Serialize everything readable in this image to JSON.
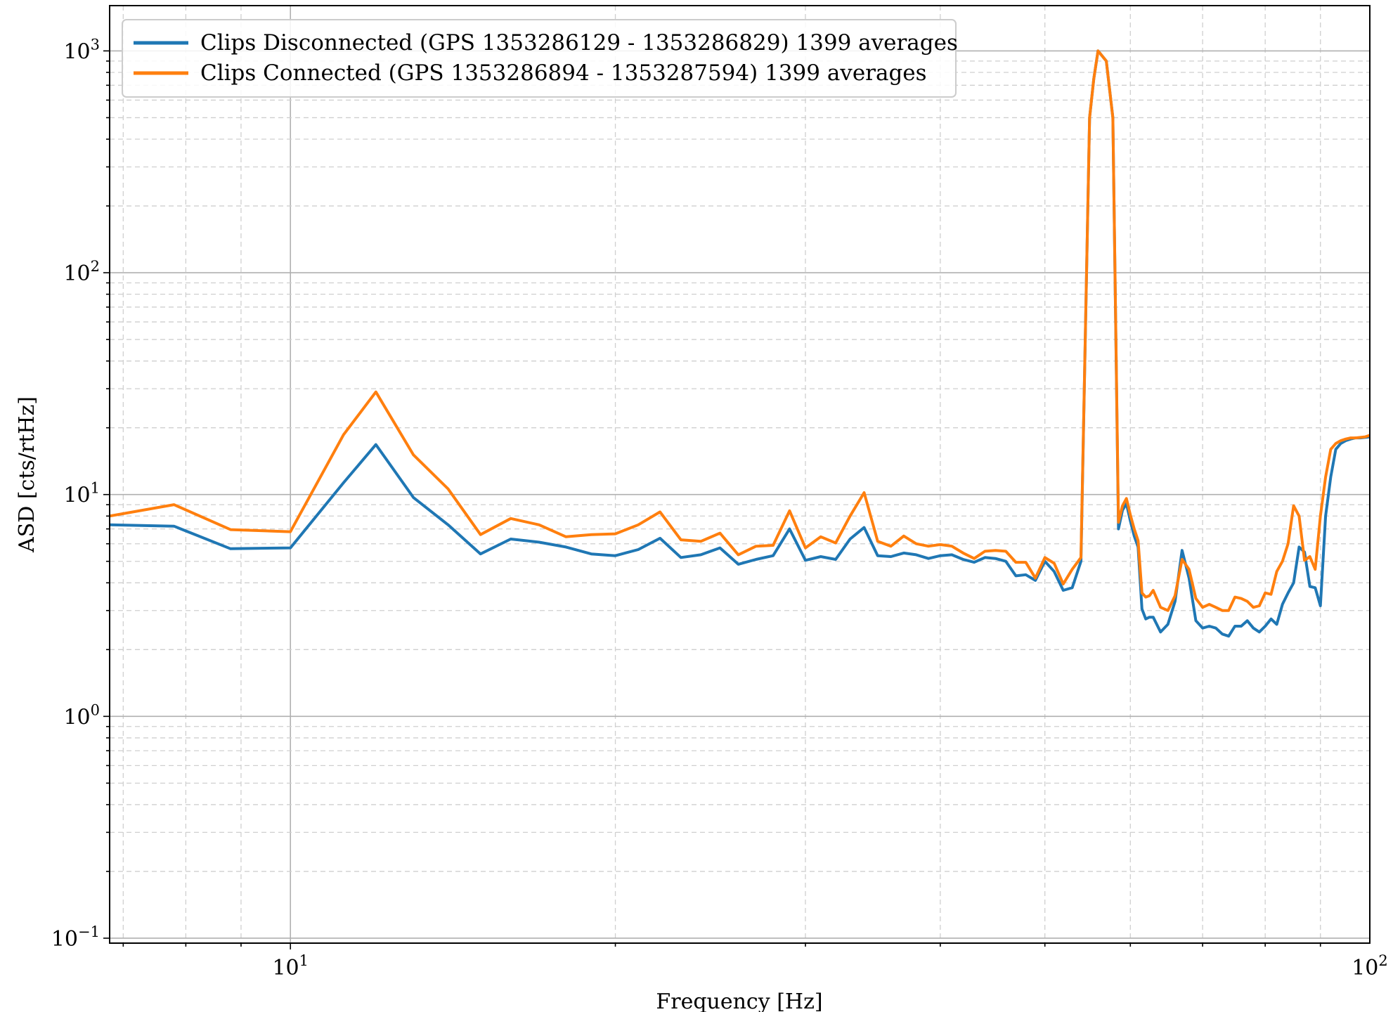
{
  "chart_data": {
    "type": "line",
    "title": "",
    "xlabel": "Frequency [Hz]",
    "ylabel": "ASD [cts/rtHz]",
    "x_scale": "log",
    "y_scale": "log",
    "xlim": [
      6.8,
      100
    ],
    "ylim": [
      0.095,
      1600
    ],
    "grid": true,
    "legend_position": "top-left",
    "x_major_ticks": [
      {
        "value": 10,
        "base": "10",
        "exp": "1"
      },
      {
        "value": 100,
        "base": "10",
        "exp": "2"
      }
    ],
    "y_major_ticks": [
      {
        "value": 0.1,
        "base": "10",
        "exp": "−1"
      },
      {
        "value": 1,
        "base": "10",
        "exp": "0"
      },
      {
        "value": 10,
        "base": "10",
        "exp": "1"
      },
      {
        "value": 100,
        "base": "10",
        "exp": "2"
      },
      {
        "value": 1000,
        "base": "10",
        "exp": "3"
      }
    ],
    "series": [
      {
        "name": "Clips Disconnected (GPS 1353286129 - 1353286829) 1399 averages",
        "color": "#1f77b4",
        "x": [
          6.8,
          7.8,
          8.8,
          10.0,
          11.2,
          12.0,
          13.0,
          14.0,
          15.0,
          16.0,
          17.0,
          18.0,
          19.0,
          20.0,
          21.0,
          22.0,
          23.0,
          24.0,
          25.0,
          26.0,
          27.0,
          28.0,
          29.0,
          30.0,
          31.0,
          32.0,
          33.0,
          34.0,
          35.0,
          36.0,
          37.0,
          38.0,
          39.0,
          40.0,
          41.0,
          42.0,
          43.0,
          44.0,
          45.0,
          46.0,
          47.0,
          48.0,
          49.0,
          50.0,
          51.0,
          52.0,
          53.0,
          54.0,
          55.0,
          55.5,
          56.0,
          57.0,
          57.8,
          58.5,
          59.0,
          59.5,
          60.0,
          60.5,
          61.0,
          61.5,
          62.0,
          62.5,
          63.0,
          64.0,
          65.0,
          66.0,
          67.0,
          68.0,
          69.0,
          70.0,
          71.0,
          72.0,
          73.0,
          74.0,
          75.0,
          76.0,
          77.0,
          78.0,
          79.0,
          80.0,
          81.0,
          82.0,
          83.0,
          84.0,
          85.0,
          86.0,
          87.0,
          88.0,
          89.0,
          90.0,
          91.0,
          92.0,
          93.0,
          94.0,
          95.0,
          96.0,
          97.0,
          98.0,
          99.0,
          100.0
        ],
        "values": [
          7.3,
          7.2,
          5.7,
          5.75,
          11.3,
          16.8,
          9.7,
          7.3,
          5.4,
          6.3,
          6.1,
          5.8,
          5.4,
          5.3,
          5.65,
          6.35,
          5.2,
          5.35,
          5.75,
          4.85,
          5.1,
          5.3,
          7.0,
          5.05,
          5.25,
          5.1,
          6.3,
          7.1,
          5.3,
          5.25,
          5.45,
          5.35,
          5.15,
          5.3,
          5.35,
          5.1,
          4.95,
          5.2,
          5.15,
          5.0,
          4.3,
          4.35,
          4.1,
          5.0,
          4.5,
          3.7,
          3.8,
          5.0,
          500,
          750,
          1000,
          900,
          500,
          7.0,
          8.5,
          9.1,
          7.6,
          6.5,
          5.8,
          3.05,
          2.75,
          2.8,
          2.8,
          2.4,
          2.6,
          3.3,
          5.6,
          4.2,
          2.7,
          2.5,
          2.55,
          2.5,
          2.35,
          2.3,
          2.55,
          2.55,
          2.7,
          2.5,
          2.4,
          2.55,
          2.75,
          2.6,
          3.2,
          3.6,
          4.0,
          5.8,
          5.5,
          3.85,
          3.8,
          3.15,
          8.0,
          12.0,
          16.0,
          17.0,
          17.5,
          17.8,
          18.0,
          18.0,
          18.1,
          18.2
        ]
      },
      {
        "name": "Clips Connected (GPS 1353286894 - 1353287594) 1399 averages",
        "color": "#ff7f0e",
        "x": [
          6.8,
          7.8,
          8.8,
          10.0,
          11.2,
          12.0,
          13.0,
          14.0,
          15.0,
          16.0,
          17.0,
          18.0,
          19.0,
          20.0,
          21.0,
          22.0,
          23.0,
          24.0,
          25.0,
          26.0,
          27.0,
          28.0,
          29.0,
          30.0,
          31.0,
          32.0,
          33.0,
          34.0,
          35.0,
          36.0,
          37.0,
          38.0,
          39.0,
          40.0,
          41.0,
          42.0,
          43.0,
          44.0,
          45.0,
          46.0,
          47.0,
          48.0,
          49.0,
          50.0,
          51.0,
          52.0,
          53.0,
          54.0,
          55.0,
          55.5,
          56.0,
          57.0,
          57.8,
          58.5,
          59.0,
          59.5,
          60.0,
          60.5,
          61.0,
          61.5,
          62.0,
          62.5,
          63.0,
          64.0,
          65.0,
          66.0,
          67.0,
          68.0,
          69.0,
          70.0,
          71.0,
          72.0,
          73.0,
          74.0,
          75.0,
          76.0,
          77.0,
          78.0,
          79.0,
          80.0,
          81.0,
          82.0,
          83.0,
          84.0,
          85.0,
          86.0,
          87.0,
          88.0,
          89.0,
          90.0,
          91.0,
          92.0,
          93.0,
          94.0,
          95.0,
          96.0,
          97.0,
          98.0,
          99.0,
          100.0
        ],
        "values": [
          8.0,
          9.0,
          6.95,
          6.8,
          18.6,
          29.0,
          15.1,
          10.6,
          6.6,
          7.8,
          7.3,
          6.45,
          6.6,
          6.65,
          7.3,
          8.35,
          6.25,
          6.15,
          6.7,
          5.35,
          5.85,
          5.9,
          8.45,
          5.75,
          6.45,
          6.05,
          8.0,
          10.2,
          6.15,
          5.85,
          6.5,
          6.0,
          5.85,
          5.95,
          5.85,
          5.45,
          5.15,
          5.55,
          5.6,
          5.55,
          4.95,
          4.95,
          4.2,
          5.2,
          4.9,
          3.95,
          4.6,
          5.2,
          500,
          750,
          1000,
          900,
          500,
          7.5,
          8.9,
          9.6,
          8.1,
          7.0,
          6.2,
          3.6,
          3.45,
          3.5,
          3.7,
          3.1,
          3.0,
          3.5,
          5.1,
          4.6,
          3.4,
          3.1,
          3.2,
          3.1,
          3.0,
          3.0,
          3.45,
          3.4,
          3.3,
          3.1,
          3.15,
          3.6,
          3.55,
          4.5,
          5.0,
          6.0,
          8.9,
          8.0,
          5.05,
          5.25,
          4.6,
          8.0,
          12.0,
          16.0,
          17.0,
          17.5,
          17.8,
          18.0,
          18.0,
          18.1,
          18.2,
          18.5
        ]
      }
    ]
  }
}
